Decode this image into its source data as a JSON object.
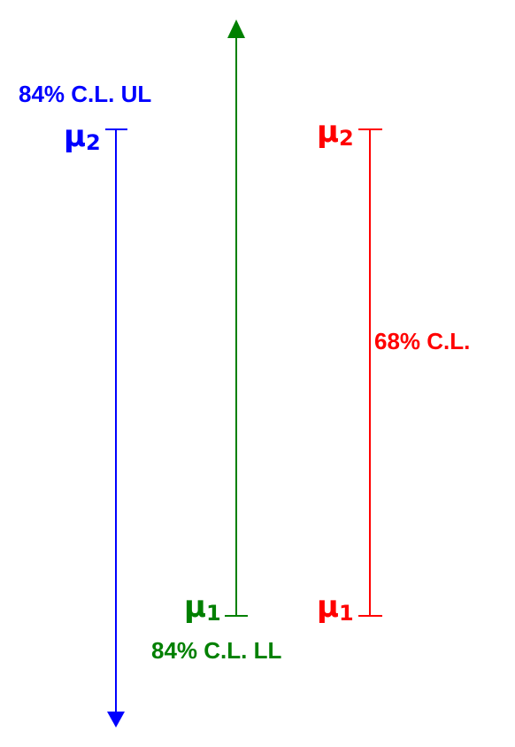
{
  "colors": {
    "upper_limit": "#0000ff",
    "lower_limit": "#008000",
    "interval": "#ff0000"
  },
  "upper_limit_arrow": {
    "caption": "84% C.L. UL",
    "endpoint": {
      "symbol": "μ",
      "subscript": "2"
    }
  },
  "lower_limit_arrow": {
    "caption": "84% C.L. LL",
    "endpoint": {
      "symbol": "μ",
      "subscript": "1"
    }
  },
  "central_interval": {
    "caption": "68% C.L.",
    "upper_endpoint": {
      "symbol": "μ",
      "subscript": "2"
    },
    "lower_endpoint": {
      "symbol": "μ",
      "subscript": "1"
    }
  }
}
